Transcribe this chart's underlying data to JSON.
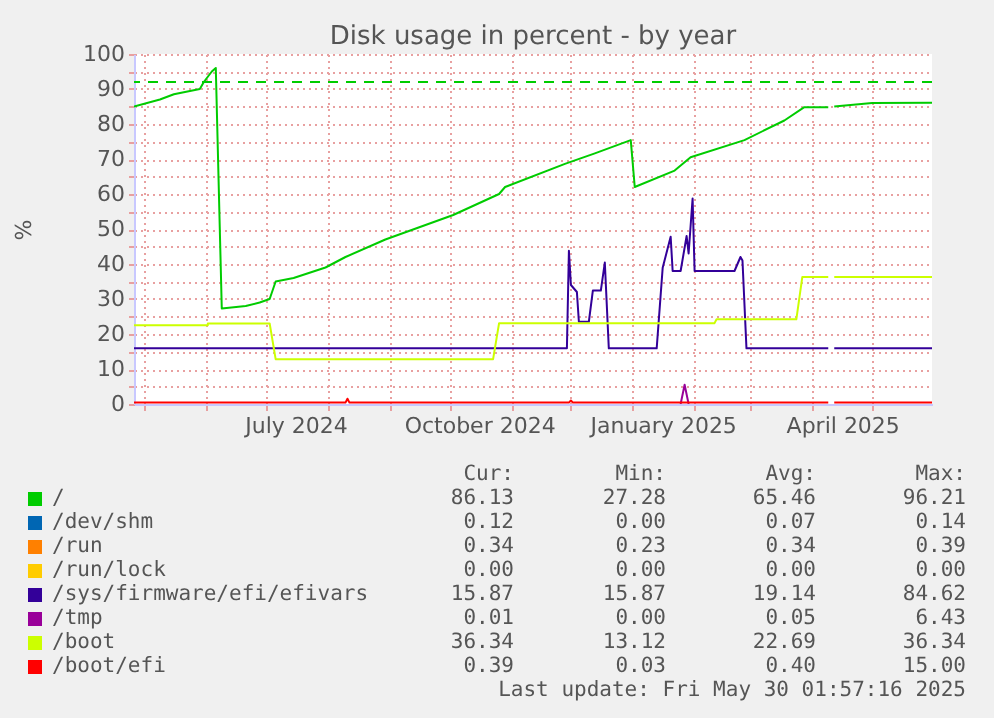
{
  "chart_data": {
    "type": "line",
    "title": "Disk usage in percent - by year",
    "ylabel": "%",
    "xlim": [
      "2024-04-26",
      "2025-05-31"
    ],
    "xticks": [
      {
        "value": "2024-05-01",
        "label": null
      },
      {
        "value": "2024-06-01",
        "label": null
      },
      {
        "value": "2024-07-01",
        "label": null
      },
      {
        "value": "2024-07-16",
        "label": "July 2024"
      },
      {
        "value": "2024-08-01",
        "label": null
      },
      {
        "value": "2024-09-01",
        "label": null
      },
      {
        "value": "2024-10-01",
        "label": null
      },
      {
        "value": "2024-10-16",
        "label": "October 2024"
      },
      {
        "value": "2024-11-01",
        "label": null
      },
      {
        "value": "2024-12-01",
        "label": null
      },
      {
        "value": "2025-01-01",
        "label": null
      },
      {
        "value": "2025-01-16",
        "label": "January 2025"
      },
      {
        "value": "2025-02-01",
        "label": null
      },
      {
        "value": "2025-03-01",
        "label": null
      },
      {
        "value": "2025-04-01",
        "label": null
      },
      {
        "value": "2025-04-16",
        "label": "April 2025"
      },
      {
        "value": "2025-05-01",
        "label": null
      }
    ],
    "ylim": [
      0,
      100
    ],
    "yticks": [
      0,
      {
        "value": 5,
        "label": null
      },
      10,
      {
        "value": 15,
        "label": null
      },
      20,
      {
        "value": 25,
        "label": null
      },
      30,
      {
        "value": 35,
        "label": null
      },
      40,
      {
        "value": 45,
        "label": null
      },
      50,
      {
        "value": 55,
        "label": null
      },
      60,
      {
        "value": 65,
        "label": null
      },
      70,
      {
        "value": 75,
        "label": null
      },
      80,
      {
        "value": 85,
        "label": null
      },
      90,
      {
        "value": 95,
        "label": null
      },
      100
    ],
    "grid": true,
    "legend": "bottom",
    "ref_lines": [
      {
        "axis": "y",
        "value": 92,
        "color": "#00cc00",
        "line_style": "dashed"
      }
    ],
    "series": [
      {
        "name": "/",
        "color": "#00cc00",
        "x": [
          "2024-04-26",
          "2024-05-09",
          "2024-05-16",
          "2024-05-29",
          "2024-05-31",
          "2024-06-04",
          "2024-06-06",
          "2024-06-09",
          "2024-06-21",
          "2024-06-28",
          "2024-07-03",
          "2024-07-06",
          "2024-07-15",
          "2024-07-31",
          "2024-08-10",
          "2024-08-30",
          "2024-10-03",
          "2024-10-26",
          "2024-10-29",
          "2024-11-28",
          "2024-12-13",
          "2024-12-31",
          "2025-01-02",
          "2025-01-22",
          "2025-01-30",
          "2025-02-26",
          "2025-03-18",
          "2025-03-28",
          "2025-04-09",
          "2025-04-11",
          "2025-04-12",
          "2025-05-01",
          "2025-05-31"
        ],
        "values": [
          85,
          87,
          88.5,
          90,
          92,
          95,
          96,
          27.3,
          28,
          29,
          30,
          35,
          36,
          39,
          42,
          47,
          54,
          60,
          62,
          68.6,
          71.6,
          75.4,
          62,
          66.7,
          70.5,
          75.4,
          81,
          84.8,
          84.8,
          null,
          85,
          86,
          86.1
        ]
      },
      {
        "name": "/dev/shm",
        "color": "#0066b3"
      },
      {
        "name": "/run",
        "color": "#ff8000"
      },
      {
        "name": "/run/lock",
        "color": "#ffcc00"
      },
      {
        "name": "/sys/firmware/efi/efivars",
        "color": "#330099",
        "x": [
          "2024-04-26",
          "2024-11-29",
          "2024-11-30",
          "2024-12-01",
          "2024-12-04",
          "2024-12-05",
          "2024-12-10",
          "2024-12-12",
          "2024-12-16",
          "2024-12-18",
          "2024-12-20",
          "2025-01-13",
          "2025-01-16",
          "2025-01-20",
          "2025-01-21",
          "2025-01-25",
          "2025-01-28",
          "2025-01-29",
          "2025-01-31",
          "2025-02-01",
          "2025-02-21",
          "2025-02-24",
          "2025-02-25",
          "2025-02-27",
          "2025-04-09",
          "2025-04-11",
          "2025-04-12",
          "2025-05-31"
        ],
        "values": [
          15.9,
          15.9,
          43.8,
          34,
          32,
          23.5,
          23.5,
          32.4,
          32.4,
          40.4,
          15.9,
          15.9,
          38.9,
          47.8,
          38,
          38,
          48,
          43,
          58.7,
          38,
          38,
          42,
          41,
          15.9,
          15.9,
          null,
          15.9,
          15.9
        ]
      },
      {
        "name": "/tmp",
        "color": "#990099",
        "x": [
          "2025-01-25",
          "2025-01-27",
          "2025-01-29"
        ],
        "values": [
          0,
          5.5,
          0
        ]
      },
      {
        "name": "/boot",
        "color": "#ccff00",
        "x": [
          "2024-04-26",
          "2024-06-02",
          "2024-06-02",
          "2024-07-03",
          "2024-07-06",
          "2024-10-23",
          "2024-10-26",
          "2025-02-11",
          "2025-02-12",
          "2025-03-24",
          "2025-03-27",
          "2025-04-09",
          "2025-04-11",
          "2025-04-12",
          "2025-05-31"
        ],
        "values": [
          22.5,
          22.5,
          23,
          23,
          12.8,
          12.8,
          23.1,
          23.1,
          24.2,
          24.2,
          36.3,
          36.3,
          null,
          36.3,
          36.3
        ]
      },
      {
        "name": "/boot/efi",
        "color": "#ff0000",
        "x": [
          "2024-04-26",
          "2024-08-10",
          "2024-08-11",
          "2024-08-12",
          "2024-11-30",
          "2024-12-01",
          "2024-12-02",
          "2025-04-09",
          "2025-04-11",
          "2025-04-12",
          "2025-05-31"
        ],
        "values": [
          0.4,
          0.4,
          1.5,
          0.4,
          0.4,
          1,
          0.4,
          0.4,
          null,
          0.4,
          0.4
        ]
      }
    ],
    "annotations": [
      "Cur:",
      "Min:",
      "Avg:",
      "Max:",
      "86.13",
      "27.28",
      "65.46",
      "96.21",
      "0.12",
      "0.00",
      "0.07",
      "0.14",
      "0.34",
      "0.23",
      "0.34",
      "0.39",
      "0.00",
      "0.00",
      "0.00",
      "0.00",
      "15.87",
      "15.87",
      "19.14",
      "84.62",
      "0.01",
      "0.00",
      "0.05",
      "6.43",
      "36.34",
      "13.12",
      "22.69",
      "36.34",
      "0.39",
      "0.03",
      "0.40",
      "15.00",
      "Last update: Fri May 30 01:57:16 2025"
    ]
  }
}
